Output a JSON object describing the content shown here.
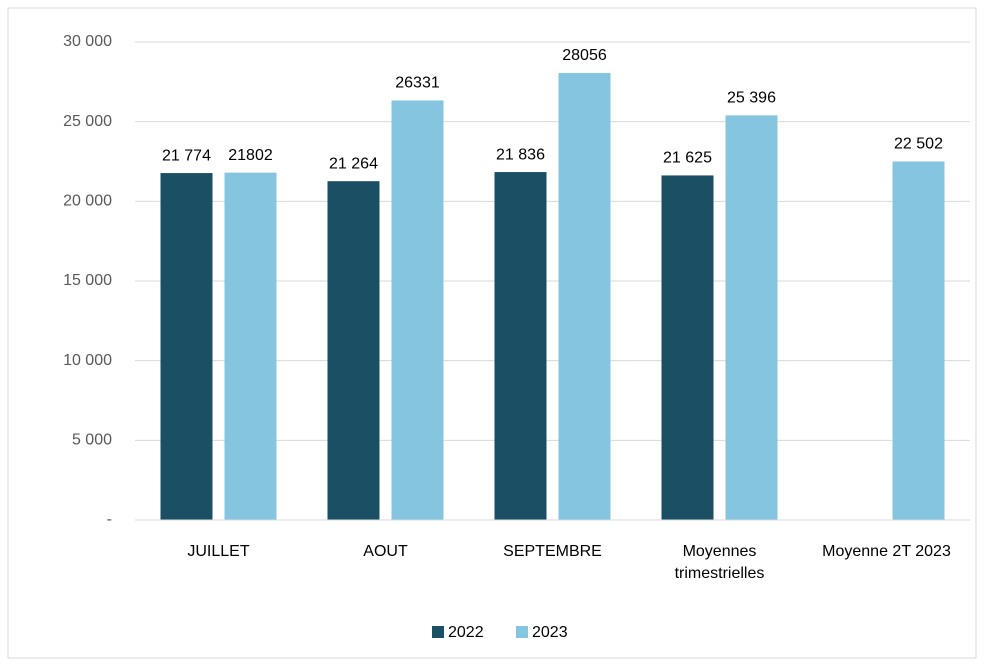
{
  "chart_data": {
    "type": "bar",
    "categories": [
      "JUILLET",
      "AOUT",
      "SEPTEMBRE",
      "Moyennes trimestrielles",
      "Moyenne 2T 2023"
    ],
    "series": [
      {
        "name": "2022",
        "color": "#1b4f63",
        "values": [
          21774,
          21264,
          21836,
          21625,
          null
        ],
        "value_labels": [
          "21 774",
          "21 264",
          "21 836",
          "21 625",
          null
        ]
      },
      {
        "name": "2023",
        "color": "#86c5e0",
        "values": [
          21802,
          26331,
          28056,
          25396,
          22502
        ],
        "value_labels": [
          "21802",
          "26331",
          "28056",
          "25 396",
          "22 502"
        ]
      }
    ],
    "ylim": [
      0,
      30000
    ],
    "yticks": [
      {
        "value": 0,
        "label": "-"
      },
      {
        "value": 5000,
        "label": "5 000"
      },
      {
        "value": 10000,
        "label": "10 000"
      },
      {
        "value": 15000,
        "label": "15 000"
      },
      {
        "value": 20000,
        "label": "20 000"
      },
      {
        "value": 25000,
        "label": "25 000"
      },
      {
        "value": 30000,
        "label": "30 000"
      }
    ],
    "grid": true,
    "legend": "bottom"
  }
}
